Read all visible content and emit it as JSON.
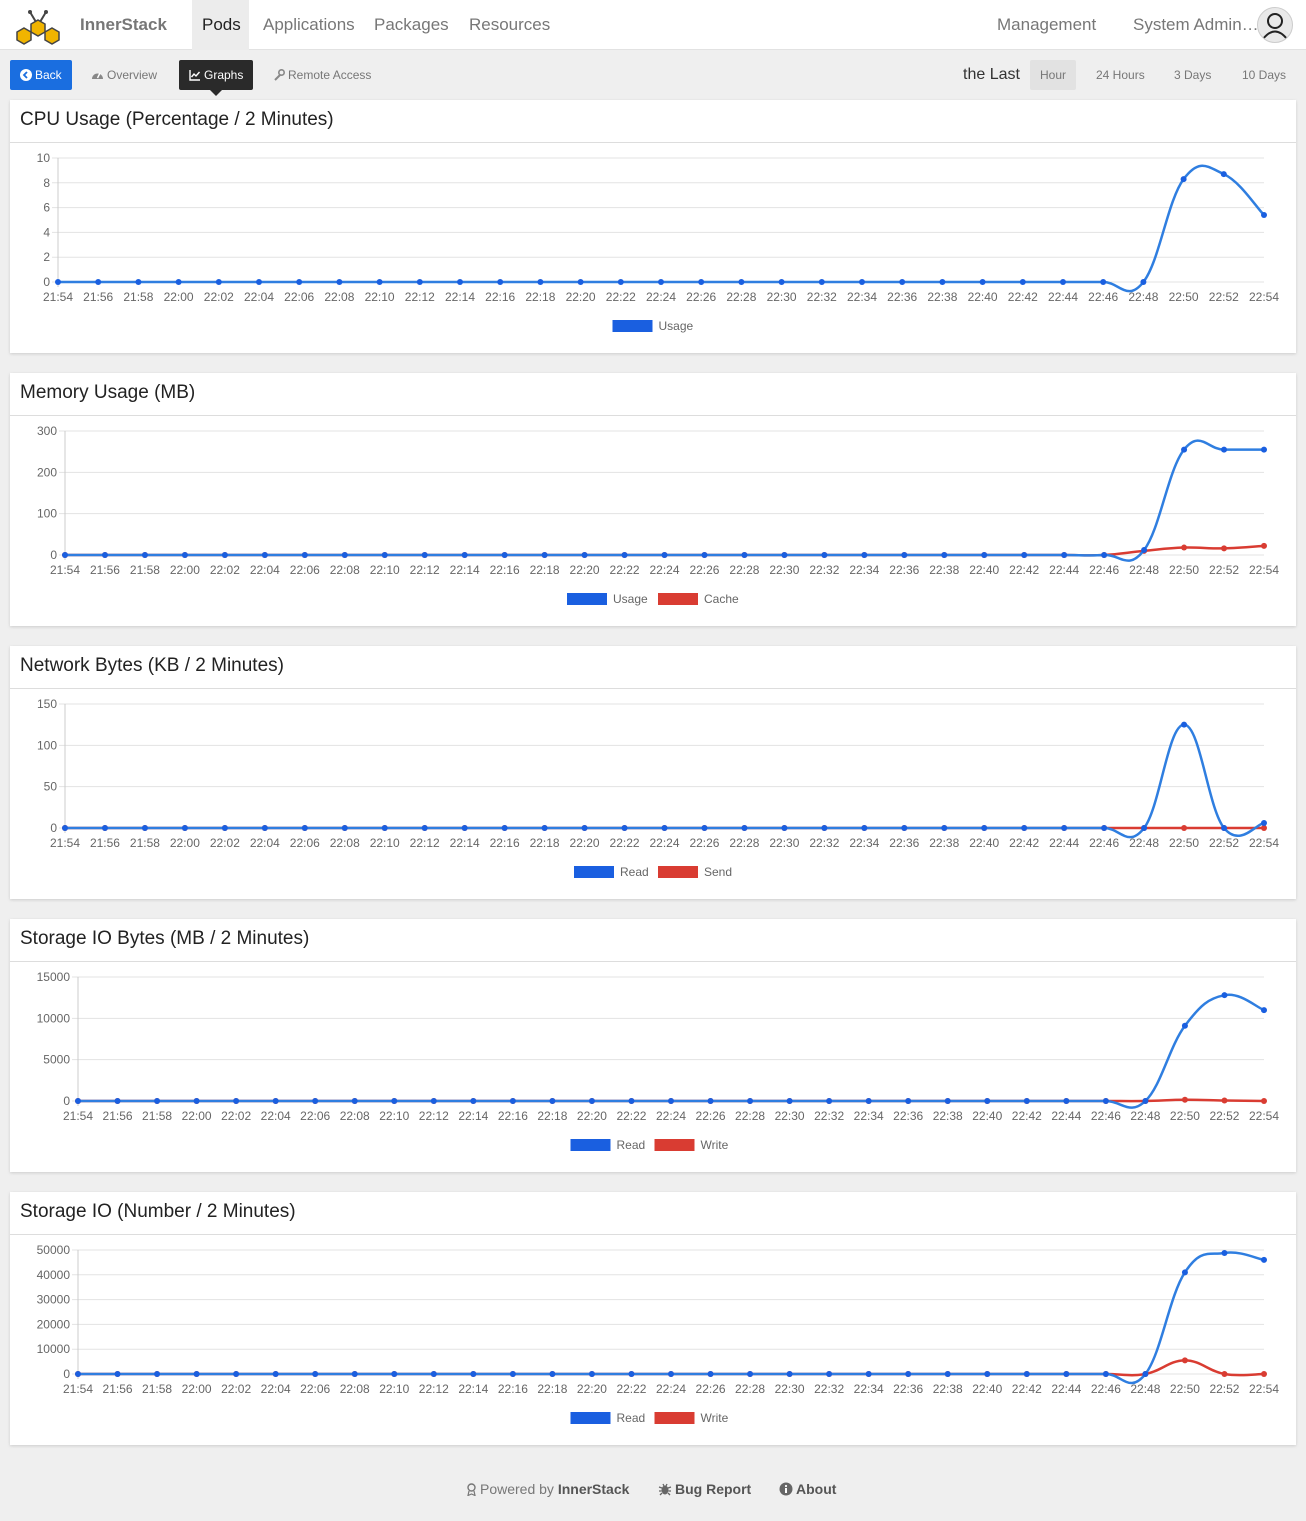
{
  "app": {
    "brand": "InnerStack"
  },
  "nav": {
    "items": [
      {
        "label": "Pods",
        "active": true
      },
      {
        "label": "Applications",
        "active": false
      },
      {
        "label": "Packages",
        "active": false
      },
      {
        "label": "Resources",
        "active": false
      }
    ],
    "management": "Management",
    "user": "System Admin…"
  },
  "toolbar": {
    "back": "Back",
    "overview": "Overview",
    "graphs": "Graphs",
    "remote": "Remote Access",
    "last_label": "the Last",
    "ranges": [
      {
        "label": "Hour",
        "active": true
      },
      {
        "label": "24 Hours",
        "active": false
      },
      {
        "label": "3 Days",
        "active": false
      },
      {
        "label": "10 Days",
        "active": false
      }
    ]
  },
  "colors": {
    "series_blue": "#1a5fe0",
    "line_blue": "#2f7ee0",
    "series_red": "#d93c32",
    "accent": "#1a6ee0"
  },
  "chart_data": [
    {
      "type": "line",
      "title": "CPU Usage (Percentage / 2 Minutes)",
      "categories": [
        "21:54",
        "21:56",
        "21:58",
        "22:00",
        "22:02",
        "22:04",
        "22:06",
        "22:08",
        "22:10",
        "22:12",
        "22:14",
        "22:16",
        "22:18",
        "22:20",
        "22:22",
        "22:24",
        "22:26",
        "22:28",
        "22:30",
        "22:32",
        "22:34",
        "22:36",
        "22:38",
        "22:40",
        "22:42",
        "22:44",
        "22:46",
        "22:48",
        "22:50",
        "22:52",
        "22:54"
      ],
      "yticks": [
        "0",
        "2",
        "4",
        "6",
        "8",
        "10"
      ],
      "ylim": [
        0,
        10
      ],
      "legend_position": "bottom",
      "series": [
        {
          "name": "Usage",
          "color": "blue",
          "values": [
            0,
            0,
            0,
            0,
            0,
            0,
            0,
            0,
            0,
            0,
            0,
            0,
            0,
            0,
            0,
            0,
            0,
            0,
            0,
            0,
            0,
            0,
            0,
            0,
            0,
            0,
            0,
            0,
            8.3,
            8.7,
            5.4
          ]
        }
      ]
    },
    {
      "type": "line",
      "title": "Memory Usage (MB)",
      "categories": [
        "21:54",
        "21:56",
        "21:58",
        "22:00",
        "22:02",
        "22:04",
        "22:06",
        "22:08",
        "22:10",
        "22:12",
        "22:14",
        "22:16",
        "22:18",
        "22:20",
        "22:22",
        "22:24",
        "22:26",
        "22:28",
        "22:30",
        "22:32",
        "22:34",
        "22:36",
        "22:38",
        "22:40",
        "22:42",
        "22:44",
        "22:46",
        "22:48",
        "22:50",
        "22:52",
        "22:54"
      ],
      "yticks": [
        "0",
        "100",
        "200",
        "300"
      ],
      "ylim": [
        0,
        300
      ],
      "legend_position": "bottom",
      "series": [
        {
          "name": "Usage",
          "color": "blue",
          "values": [
            0,
            0,
            0,
            0,
            0,
            0,
            0,
            0,
            0,
            0,
            0,
            0,
            0,
            0,
            0,
            0,
            0,
            0,
            0,
            0,
            0,
            0,
            0,
            0,
            0,
            0,
            0,
            12,
            255,
            255,
            255
          ]
        },
        {
          "name": "Cache",
          "color": "red",
          "values": [
            0,
            0,
            0,
            0,
            0,
            0,
            0,
            0,
            0,
            0,
            0,
            0,
            0,
            0,
            0,
            0,
            0,
            0,
            0,
            0,
            0,
            0,
            0,
            0,
            0,
            0,
            0,
            10,
            18,
            16,
            22
          ]
        }
      ]
    },
    {
      "type": "line",
      "title": "Network Bytes (KB / 2 Minutes)",
      "categories": [
        "21:54",
        "21:56",
        "21:58",
        "22:00",
        "22:02",
        "22:04",
        "22:06",
        "22:08",
        "22:10",
        "22:12",
        "22:14",
        "22:16",
        "22:18",
        "22:20",
        "22:22",
        "22:24",
        "22:26",
        "22:28",
        "22:30",
        "22:32",
        "22:34",
        "22:36",
        "22:38",
        "22:40",
        "22:42",
        "22:44",
        "22:46",
        "22:48",
        "22:50",
        "22:52",
        "22:54"
      ],
      "yticks": [
        "0",
        "50",
        "100",
        "150"
      ],
      "ylim": [
        0,
        150
      ],
      "legend_position": "bottom",
      "series": [
        {
          "name": "Read",
          "color": "blue",
          "values": [
            0,
            0,
            0,
            0,
            0,
            0,
            0,
            0,
            0,
            0,
            0,
            0,
            0,
            0,
            0,
            0,
            0,
            0,
            0,
            0,
            0,
            0,
            0,
            0,
            0,
            0,
            0,
            0,
            125,
            0,
            6
          ]
        },
        {
          "name": "Send",
          "color": "red",
          "values": [
            0,
            0,
            0,
            0,
            0,
            0,
            0,
            0,
            0,
            0,
            0,
            0,
            0,
            0,
            0,
            0,
            0,
            0,
            0,
            0,
            0,
            0,
            0,
            0,
            0,
            0,
            0,
            0,
            0,
            0,
            0
          ]
        }
      ]
    },
    {
      "type": "line",
      "title": "Storage IO Bytes (MB / 2 Minutes)",
      "categories": [
        "21:54",
        "21:56",
        "21:58",
        "22:00",
        "22:02",
        "22:04",
        "22:06",
        "22:08",
        "22:10",
        "22:12",
        "22:14",
        "22:16",
        "22:18",
        "22:20",
        "22:22",
        "22:24",
        "22:26",
        "22:28",
        "22:30",
        "22:32",
        "22:34",
        "22:36",
        "22:38",
        "22:40",
        "22:42",
        "22:44",
        "22:46",
        "22:48",
        "22:50",
        "22:52",
        "22:54"
      ],
      "yticks": [
        "0",
        "5000",
        "10000",
        "15000"
      ],
      "ylim": [
        0,
        15000
      ],
      "legend_position": "bottom",
      "series": [
        {
          "name": "Read",
          "color": "blue",
          "values": [
            0,
            0,
            0,
            0,
            0,
            0,
            0,
            0,
            0,
            0,
            0,
            0,
            0,
            0,
            0,
            0,
            0,
            0,
            0,
            0,
            0,
            0,
            0,
            0,
            0,
            0,
            0,
            0,
            9100,
            12800,
            11000
          ]
        },
        {
          "name": "Write",
          "color": "red",
          "values": [
            0,
            0,
            0,
            0,
            0,
            0,
            0,
            0,
            0,
            0,
            0,
            0,
            0,
            0,
            0,
            0,
            0,
            0,
            0,
            0,
            0,
            0,
            0,
            0,
            0,
            0,
            0,
            0,
            150,
            60,
            0
          ]
        }
      ]
    },
    {
      "type": "line",
      "title": "Storage IO (Number / 2 Minutes)",
      "categories": [
        "21:54",
        "21:56",
        "21:58",
        "22:00",
        "22:02",
        "22:04",
        "22:06",
        "22:08",
        "22:10",
        "22:12",
        "22:14",
        "22:16",
        "22:18",
        "22:20",
        "22:22",
        "22:24",
        "22:26",
        "22:28",
        "22:30",
        "22:32",
        "22:34",
        "22:36",
        "22:38",
        "22:40",
        "22:42",
        "22:44",
        "22:46",
        "22:48",
        "22:50",
        "22:52",
        "22:54"
      ],
      "yticks": [
        "0",
        "10000",
        "20000",
        "30000",
        "40000",
        "50000"
      ],
      "ylim": [
        0,
        50000
      ],
      "legend_position": "bottom",
      "series": [
        {
          "name": "Read",
          "color": "blue",
          "values": [
            0,
            0,
            0,
            0,
            0,
            0,
            0,
            0,
            0,
            0,
            0,
            0,
            0,
            0,
            0,
            0,
            0,
            0,
            0,
            0,
            0,
            0,
            0,
            0,
            0,
            0,
            0,
            0,
            41000,
            48800,
            46000
          ]
        },
        {
          "name": "Write",
          "color": "red",
          "values": [
            0,
            0,
            0,
            0,
            0,
            0,
            0,
            0,
            0,
            0,
            0,
            0,
            0,
            0,
            0,
            0,
            0,
            0,
            0,
            0,
            0,
            0,
            0,
            0,
            0,
            0,
            0,
            0,
            5500,
            0,
            0
          ]
        }
      ]
    }
  ],
  "footer": {
    "powered_prefix": "Powered by",
    "powered_brand": "InnerStack",
    "bug_report": "Bug Report",
    "about": "About"
  }
}
